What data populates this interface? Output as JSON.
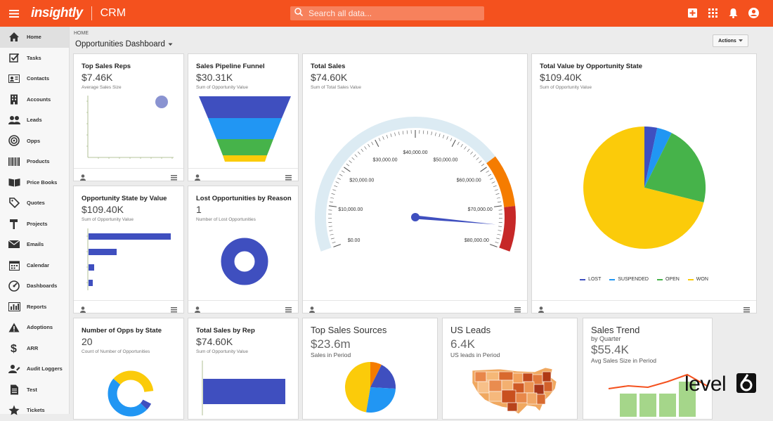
{
  "app": {
    "brand": "insightly",
    "name": "CRM"
  },
  "search": {
    "placeholder": "Search all data..."
  },
  "colors": {
    "accent": "#f4511e",
    "blue": "#3f4fbf",
    "light_blue": "#2196f3",
    "green": "#46b34a",
    "yellow": "#fbcb0a",
    "orange": "#f57c00",
    "red": "#d32f2f"
  },
  "sidebar": {
    "items": [
      {
        "label": "Home",
        "icon": "home-icon"
      },
      {
        "label": "Tasks",
        "icon": "tasks-icon"
      },
      {
        "label": "Contacts",
        "icon": "contacts-icon"
      },
      {
        "label": "Accounts",
        "icon": "accounts-icon"
      },
      {
        "label": "Leads",
        "icon": "leads-icon"
      },
      {
        "label": "Opps",
        "icon": "target-icon"
      },
      {
        "label": "Products",
        "icon": "barcode-icon"
      },
      {
        "label": "Price Books",
        "icon": "book-icon"
      },
      {
        "label": "Quotes",
        "icon": "tag-icon"
      },
      {
        "label": "Projects",
        "icon": "hammer-icon"
      },
      {
        "label": "Emails",
        "icon": "mail-icon"
      },
      {
        "label": "Calendar",
        "icon": "calendar-icon"
      },
      {
        "label": "Dashboards",
        "icon": "speedometer-icon"
      },
      {
        "label": "Reports",
        "icon": "bar-chart-icon"
      },
      {
        "label": "Adoptions",
        "icon": "warning-icon"
      },
      {
        "label": "ARR",
        "icon": "dollar-icon"
      },
      {
        "label": "Audit Loggers",
        "icon": "user-edit-icon"
      },
      {
        "label": "Test",
        "icon": "document-icon"
      },
      {
        "label": "Tickets",
        "icon": "ticket-icon"
      }
    ]
  },
  "header": {
    "breadcrumb": "HOME",
    "title": "Opportunities Dashboard",
    "actions_label": "Actions"
  },
  "cards": {
    "top_sales_reps": {
      "title": "Top Sales Reps",
      "value": "$7.46K",
      "sub": "Average Sales Size"
    },
    "pipeline": {
      "title": "Sales Pipeline Funnel",
      "value": "$30.31K",
      "sub": "Sum of Opportunity Value"
    },
    "total_sales": {
      "title": "Total Sales",
      "value": "$74.60K",
      "sub": "Sum of Total Sales Value"
    },
    "total_value_state": {
      "title": "Total Value by Opportunity State",
      "value": "$109.40K",
      "sub": "Sum of Opportunity Value"
    },
    "opp_state_value": {
      "title": "Opportunity State by Value",
      "value": "$109.40K",
      "sub": "Sum of Opportunity Value"
    },
    "lost_opps": {
      "title": "Lost Opportunities by Reason",
      "value": "1",
      "sub": "Number of Lost Opportunities"
    },
    "num_opps_state": {
      "title": "Number of Opps by State",
      "value": "20",
      "sub": "Count of Number of Opportunities"
    },
    "total_sales_rep": {
      "title": "Total Sales by Rep",
      "value": "$74.60K",
      "sub": "Sum of Opportunity Value"
    },
    "top_sources": {
      "title": "Top Sales Sources",
      "value": "$23.6m",
      "sub": "Sales in Period"
    },
    "us_leads": {
      "title": "US Leads",
      "value": "6.4K",
      "sub": "US leads in Period"
    },
    "sales_trend": {
      "title": "Sales Trend",
      "title2": "by Quarter",
      "value": "$55.4K",
      "sub": "Avg Sales Size in Period"
    }
  },
  "gauge": {
    "ticks": [
      "$0.00",
      "$10,000.00",
      "$20,000.00",
      "$30,000.00",
      "$40,000.00",
      "$50,000.00",
      "$60,000.00",
      "$70,000.00",
      "$80,000.00"
    ],
    "value": 74600,
    "max": 80000
  },
  "pie": {
    "legend": [
      {
        "label": "LOST",
        "color": "#3f4fbf"
      },
      {
        "label": "SUSPENDED",
        "color": "#2196f3"
      },
      {
        "label": "OPEN",
        "color": "#46b34a"
      },
      {
        "label": "WON",
        "color": "#fbcb0a"
      }
    ]
  },
  "watermark": "level6"
}
